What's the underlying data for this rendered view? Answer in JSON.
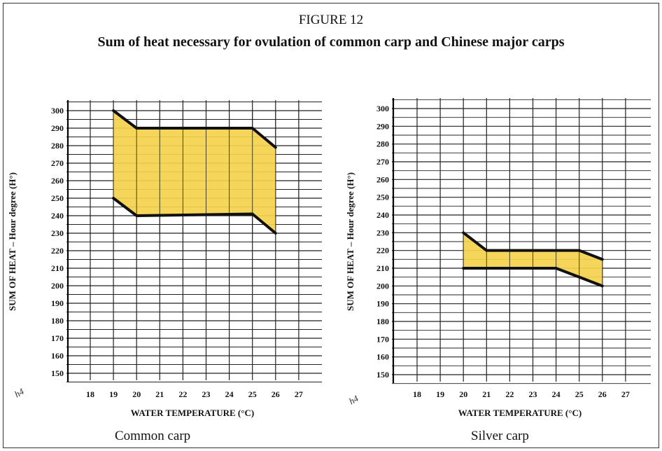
{
  "figure": {
    "label": "FIGURE 12",
    "title": "Sum of heat necessary for ovulation of common carp and Chinese major carps"
  },
  "colors": {
    "fill": "#F5D24C",
    "line": "#111111",
    "grid": "#222222"
  },
  "chart_data": [
    {
      "type": "area",
      "caption": "Common carp",
      "xlabel": "WATER TEMPERATURE (°C)",
      "ylabel": "SUM OF HEAT – Hour degree (H°)",
      "corner_mark": "h4",
      "x_ticks": [
        18,
        19,
        20,
        21,
        22,
        23,
        24,
        25,
        26,
        27
      ],
      "y_ticks": [
        150,
        160,
        170,
        180,
        190,
        200,
        210,
        220,
        230,
        240,
        250,
        260,
        270,
        280,
        290,
        300
      ],
      "xlim": [
        17,
        28
      ],
      "ylim": [
        140,
        305
      ],
      "upper": [
        [
          19,
          300
        ],
        [
          20,
          290
        ],
        [
          25,
          290
        ],
        [
          26,
          279
        ]
      ],
      "lower": [
        [
          19,
          250
        ],
        [
          20,
          240
        ],
        [
          25,
          241
        ],
        [
          26,
          230
        ]
      ]
    },
    {
      "type": "area",
      "caption": "Silver carp",
      "xlabel": "WATER TEMPERATURE (°C)",
      "ylabel": "SUM OF HEAT – Hour degree (H°)",
      "corner_mark": "h4",
      "x_ticks": [
        18,
        19,
        20,
        21,
        22,
        23,
        24,
        25,
        26,
        27
      ],
      "y_ticks": [
        150,
        160,
        170,
        180,
        190,
        200,
        210,
        220,
        230,
        240,
        250,
        260,
        270,
        280,
        290,
        300
      ],
      "xlim": [
        17,
        28
      ],
      "ylim": [
        140,
        305
      ],
      "upper": [
        [
          20,
          230
        ],
        [
          21,
          220
        ],
        [
          25,
          220
        ],
        [
          26,
          215
        ]
      ],
      "lower": [
        [
          20,
          210
        ],
        [
          24,
          210
        ],
        [
          25,
          205
        ],
        [
          26,
          200
        ]
      ]
    }
  ]
}
